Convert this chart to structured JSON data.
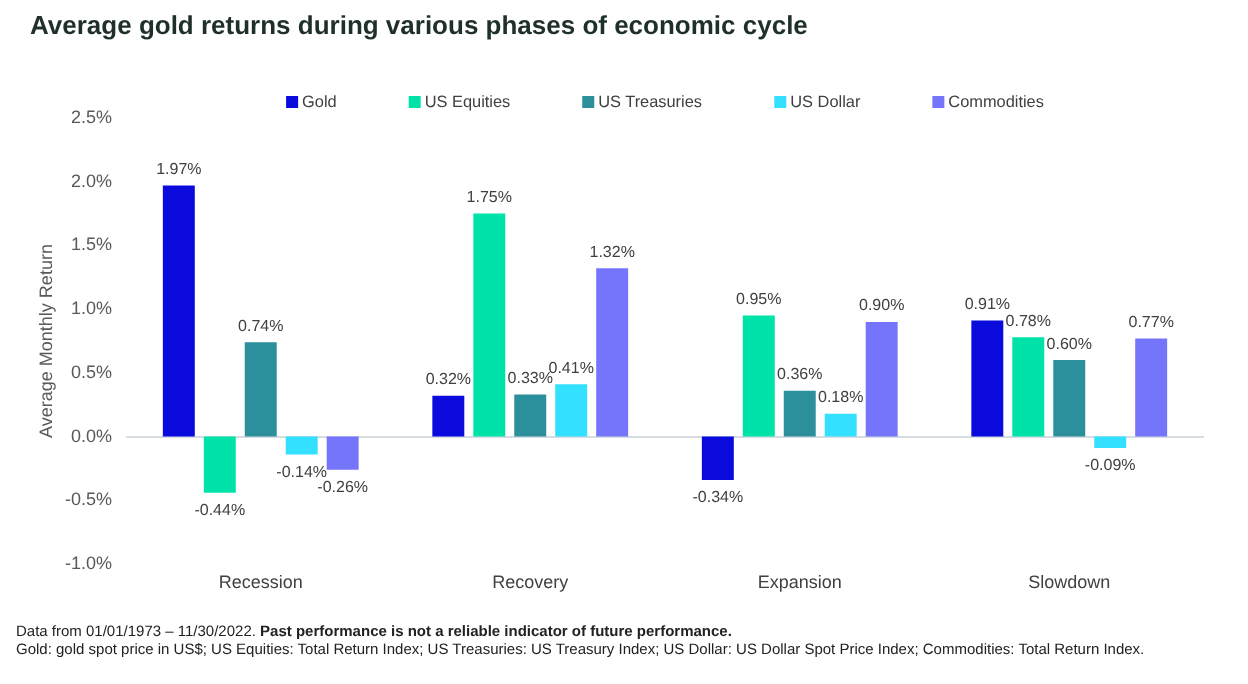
{
  "chart_data": {
    "type": "bar",
    "title": "Average gold returns during various phases of economic cycle",
    "ylabel": "Average Monthly Return",
    "categories": [
      "Recession",
      "Recovery",
      "Expansion",
      "Slowdown"
    ],
    "series": [
      {
        "name": "Gold",
        "color": "#0a0adc",
        "values": [
          1.97,
          0.32,
          -0.34,
          0.91
        ],
        "value_labels": [
          "1.97%",
          "0.32%",
          "-0.34%",
          "0.91%"
        ]
      },
      {
        "name": "US Equities",
        "color": "#00e3a8",
        "values": [
          -0.44,
          1.75,
          0.95,
          0.78
        ],
        "value_labels": [
          "-0.44%",
          "1.75%",
          "0.95%",
          "0.78%"
        ]
      },
      {
        "name": "US Treasuries",
        "color": "#2b8f9c",
        "values": [
          0.74,
          0.33,
          0.36,
          0.6
        ],
        "value_labels": [
          "0.74%",
          "0.33%",
          "0.36%",
          "0.60%"
        ]
      },
      {
        "name": "US Dollar",
        "color": "#33e0ff",
        "values": [
          -0.14,
          0.41,
          0.18,
          -0.09
        ],
        "value_labels": [
          "-0.14%",
          "0.41%",
          "0.18%",
          "-0.09%"
        ]
      },
      {
        "name": "Commodities",
        "color": "#7575fb",
        "values": [
          -0.26,
          1.32,
          0.9,
          0.77
        ],
        "value_labels": [
          "-0.26%",
          "1.32%",
          "0.90%",
          "0.77%"
        ]
      }
    ],
    "ylim": [
      -1,
      2.5
    ],
    "yticks": [
      {
        "value": -1,
        "label": "-1.0%"
      },
      {
        "value": -0.5,
        "label": "-0.5%"
      },
      {
        "value": 0,
        "label": "0.0%"
      },
      {
        "value": 0.5,
        "label": "0.5%"
      },
      {
        "value": 1,
        "label": "1.0%"
      },
      {
        "value": 1.5,
        "label": "1.5%"
      },
      {
        "value": 2,
        "label": "2.0%"
      },
      {
        "value": 2.5,
        "label": "2.5%"
      }
    ],
    "legend": "top",
    "annotations": [
      "Data from 01/01/1973 – 11/30/2022.",
      "Past performance is not a reliable indicator of future performance.",
      "Gold: gold spot price in US$; US Equities: Total Return Index; US Treasuries: US Treasury Index; US Dollar: US Dollar Spot Price Index; Commodities: Total Return Index."
    ]
  }
}
